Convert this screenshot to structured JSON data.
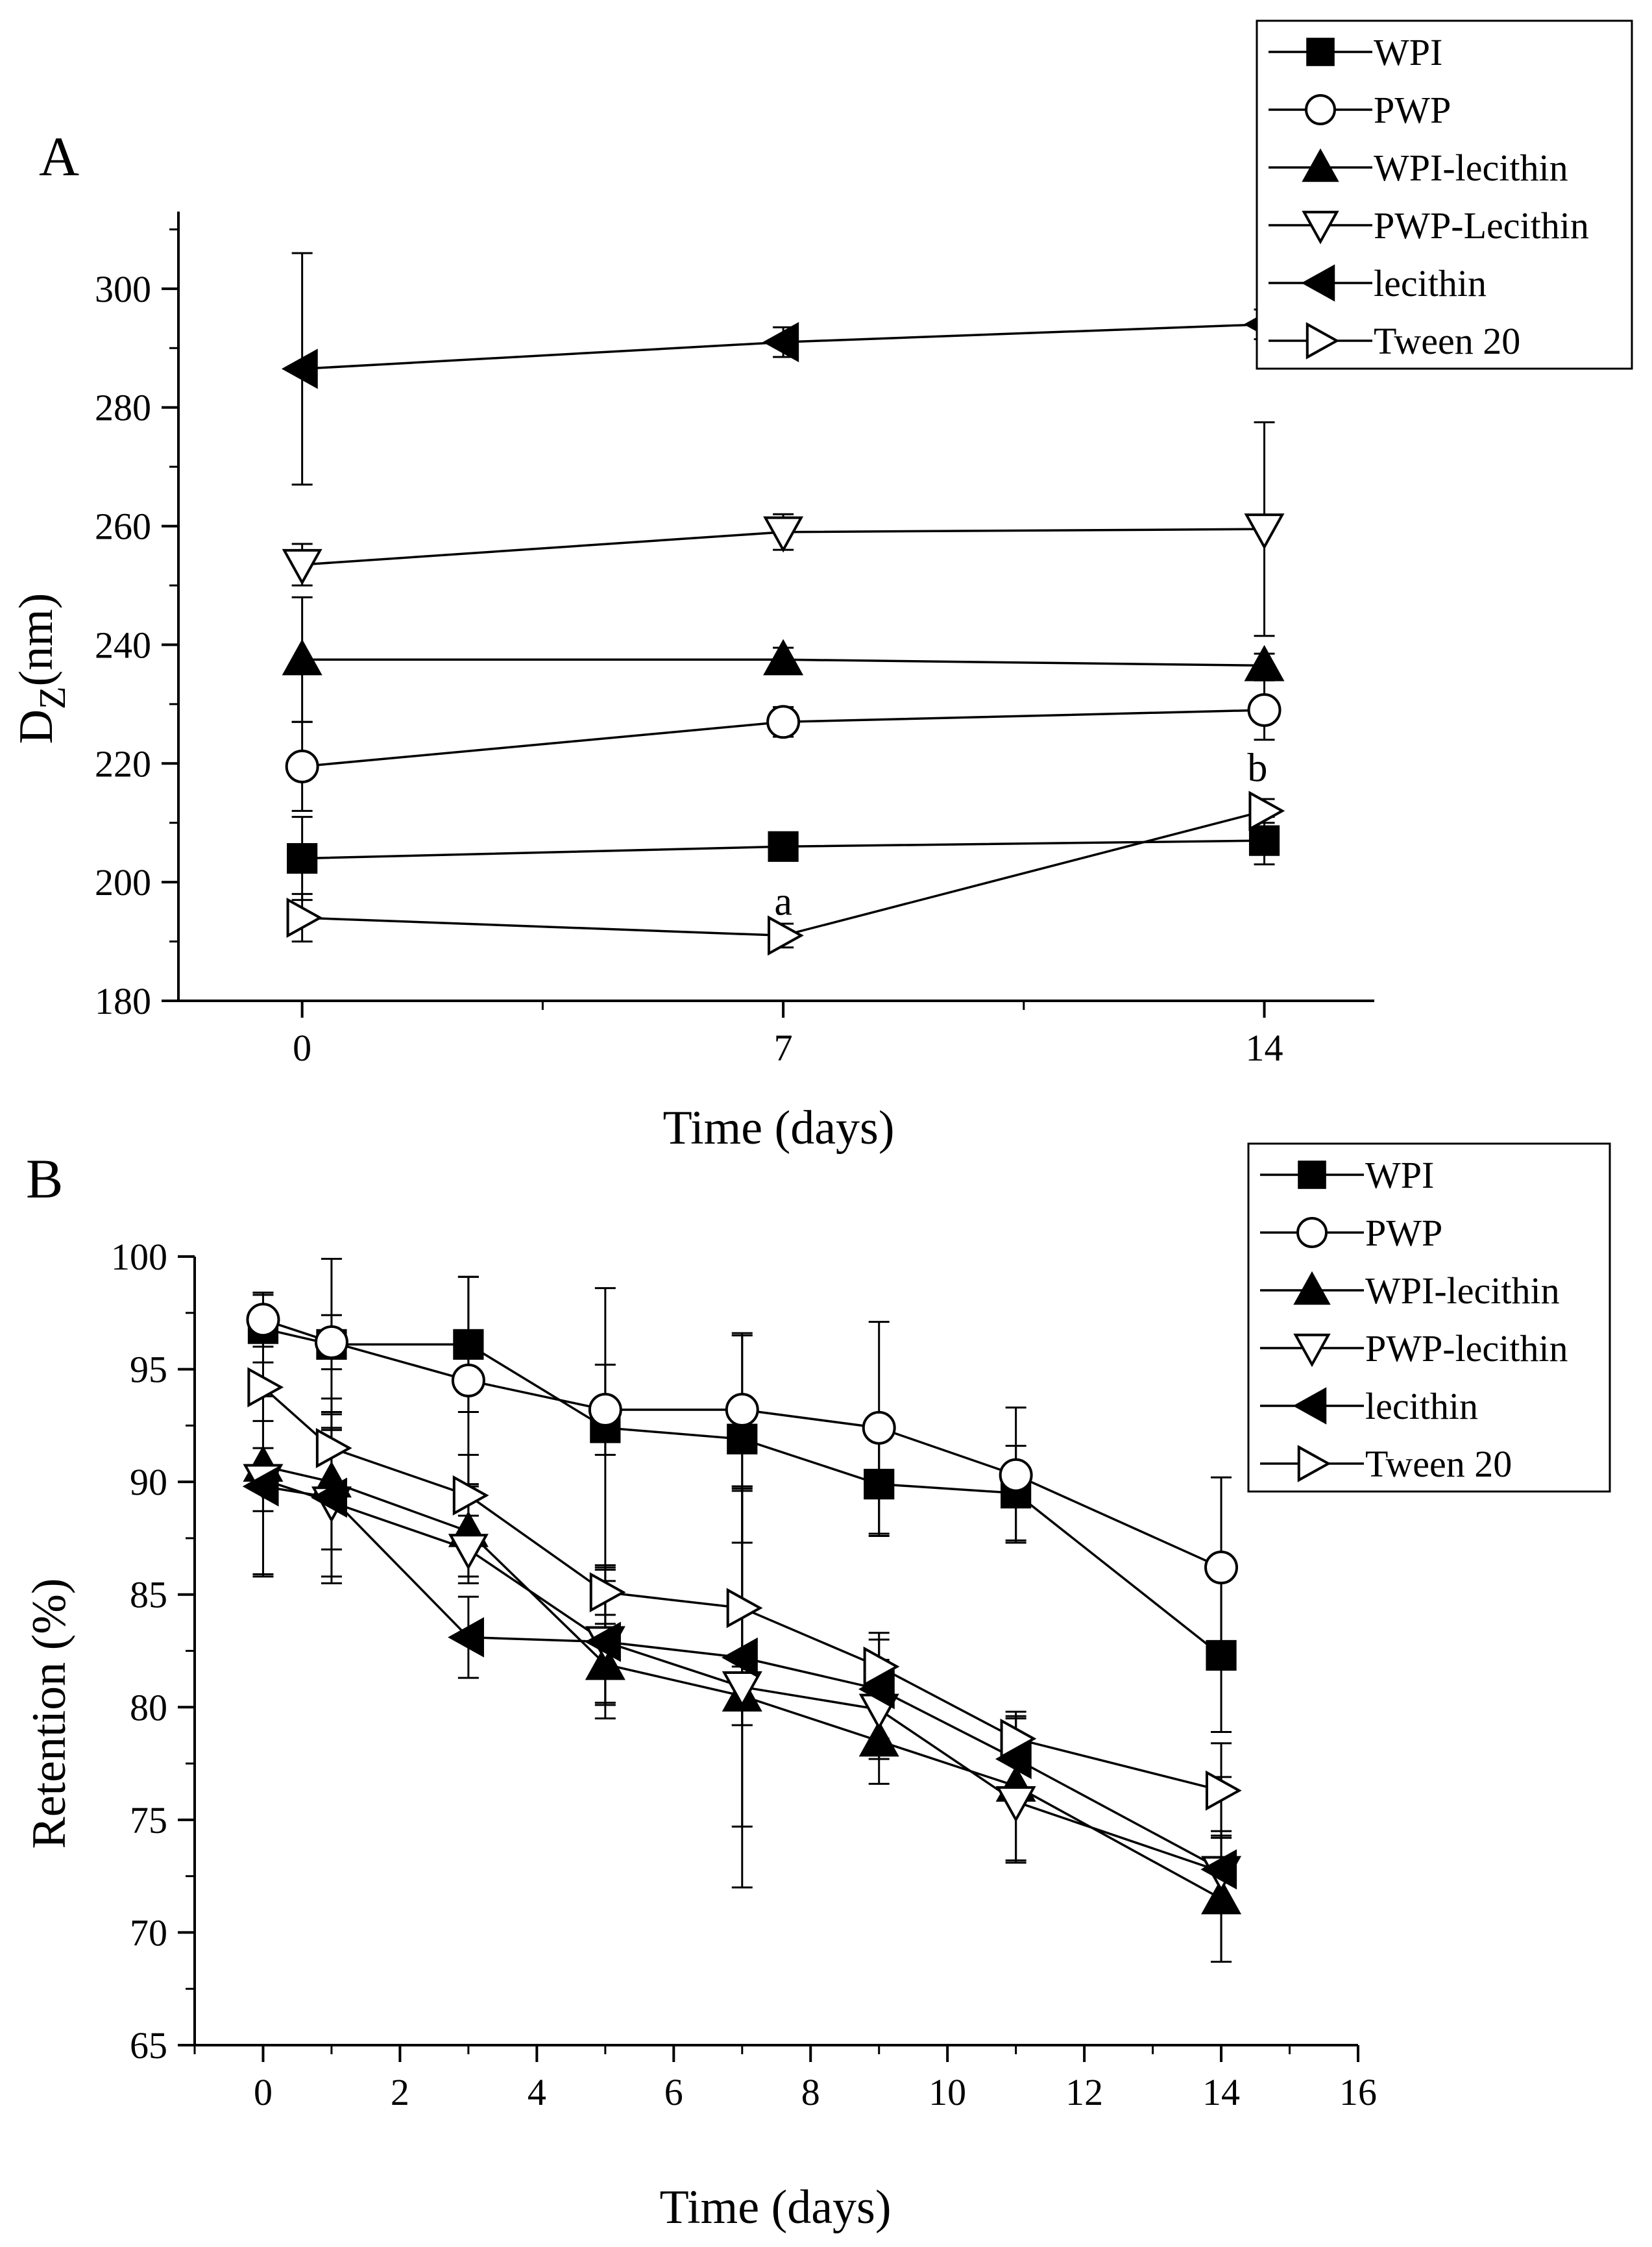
{
  "chart_data": [
    {
      "type": "line",
      "panel_label": "A",
      "title": "",
      "xlabel": "Time (days)",
      "ylabel_main": "D",
      "ylabel_sub": "Z",
      "ylabel_rest": "(nm)",
      "xlim": [
        -1.8,
        15.6
      ],
      "ylim": [
        180,
        313
      ],
      "x_ticks": [
        0,
        7,
        14
      ],
      "x_ticklabels": [
        "0",
        "7",
        "14"
      ],
      "x_minor_ticks": [
        3.5,
        10.5
      ],
      "y_ticks": [
        180,
        200,
        220,
        240,
        260,
        280,
        300
      ],
      "y_ticklabels": [
        "180",
        "200",
        "220",
        "240",
        "260",
        "280",
        "300"
      ],
      "y_minor_step": 10,
      "legend_position": "top-right",
      "series": [
        {
          "name": "WPI",
          "marker": "square-filled",
          "x": [
            0,
            7,
            14
          ],
          "values": [
            204,
            206,
            207
          ],
          "err": [
            7,
            2,
            4
          ]
        },
        {
          "name": "PWP",
          "marker": "circle-open",
          "x": [
            0,
            7,
            14
          ],
          "values": [
            219.5,
            227,
            229
          ],
          "err": [
            7.5,
            2.5,
            5
          ]
        },
        {
          "name": "WPI-lecithin",
          "marker": "triangle-up-filled",
          "x": [
            0,
            7,
            14
          ],
          "values": [
            237.5,
            237.5,
            236.5
          ],
          "err": [
            10.5,
            2,
            2
          ]
        },
        {
          "name": "PWP-Lecithin",
          "marker": "triangle-down-open",
          "x": [
            0,
            7,
            14
          ],
          "values": [
            253.5,
            259,
            259.5
          ],
          "err": [
            3.5,
            3,
            18
          ]
        },
        {
          "name": "lecithin",
          "marker": "triangle-left-filled",
          "x": [
            0,
            7,
            14
          ],
          "values": [
            286.5,
            291,
            294
          ],
          "err": [
            19.5,
            2.5,
            2.5
          ]
        },
        {
          "name": "Tween 20",
          "marker": "triangle-right-open",
          "x": [
            0,
            7,
            14
          ],
          "values": [
            194,
            191,
            212
          ],
          "err": [
            4,
            2,
            2
          ]
        }
      ],
      "annotations": [
        {
          "text": "a",
          "x": 7,
          "y": 194.5
        },
        {
          "text": "b",
          "x": 13.9,
          "y": 217
        }
      ]
    },
    {
      "type": "line",
      "panel_label": "B",
      "title": "",
      "xlabel": "Time (days)",
      "ylabel": "Retention (%)",
      "xlim": [
        -1,
        16
      ],
      "ylim": [
        65,
        100
      ],
      "x_ticks": [
        0,
        2,
        4,
        6,
        8,
        10,
        12,
        14,
        16
      ],
      "x_ticklabels": [
        "0",
        "2",
        "4",
        "6",
        "8",
        "10",
        "12",
        "14",
        "16"
      ],
      "x_minor_step": 1,
      "y_ticks": [
        65,
        70,
        75,
        80,
        85,
        90,
        95,
        100
      ],
      "y_ticklabels": [
        "65",
        "70",
        "75",
        "80",
        "85",
        "90",
        "95",
        "100"
      ],
      "y_minor_step": 2.5,
      "legend_position": "top-right",
      "series": [
        {
          "name": "WPI",
          "marker": "square-filled",
          "x": [
            0,
            1,
            3,
            5,
            7,
            9,
            11,
            14
          ],
          "values": [
            96.8,
            96.1,
            96.1,
            92.4,
            91.9,
            89.9,
            89.5,
            82.3
          ],
          "err": [
            1.5,
            3.8,
            3,
            6.2,
            4.6,
            2.3,
            2.1,
            3.4
          ]
        },
        {
          "name": "PWP",
          "marker": "circle-open",
          "x": [
            0,
            1,
            3,
            5,
            7,
            9,
            11,
            14
          ],
          "values": [
            97.2,
            96.2,
            94.5,
            93.2,
            93.2,
            92.4,
            90.3,
            86.2
          ],
          "err": [
            1.2,
            1.2,
            4.6,
            2,
            3.4,
            4.7,
            3,
            4
          ]
        },
        {
          "name": "WPI-lecithin",
          "marker": "triangle-up-filled",
          "x": [
            0,
            1,
            3,
            5,
            7,
            9,
            11,
            14
          ],
          "values": [
            90.7,
            90,
            87.8,
            81.9,
            80.5,
            78.5,
            76.5,
            71.5
          ],
          "err": [
            2,
            3,
            2,
            1.8,
            1.3,
            1.9,
            3.3,
            2.8
          ]
        },
        {
          "name": "PWP-lecithin",
          "marker": "triangle-down-open",
          "x": [
            0,
            1,
            3,
            5,
            7,
            9,
            11,
            14
          ],
          "values": [
            90.1,
            89.1,
            87,
            82.9,
            80.9,
            79.9,
            75.8,
            72.7
          ],
          "err": [
            4.2,
            3.3,
            1.5,
            3.4,
            8.9,
            2.2,
            2.7,
            1.8
          ]
        },
        {
          "name": "lecithin",
          "marker": "triangle-left-filled",
          "x": [
            0,
            1,
            3,
            5,
            7,
            9,
            11,
            14
          ],
          "values": [
            89.8,
            89.3,
            83.1,
            82.9,
            82.2,
            80.8,
            77.7,
            72.8
          ],
          "err": [
            4,
            3.8,
            1.8,
            2.7,
            7.5,
            2.2,
            1.8,
            4.1
          ]
        },
        {
          "name": "Tween 20",
          "marker": "triangle-right-open",
          "x": [
            0,
            1,
            3,
            5,
            7,
            9,
            11,
            14
          ],
          "values": [
            94.2,
            91.5,
            89.4,
            85.1,
            84.4,
            81.8,
            78.6,
            76.3
          ],
          "err": [
            2.7,
            2.2,
            1.8,
            1,
            5.2,
            1.5,
            1,
            2.1
          ]
        }
      ]
    }
  ]
}
